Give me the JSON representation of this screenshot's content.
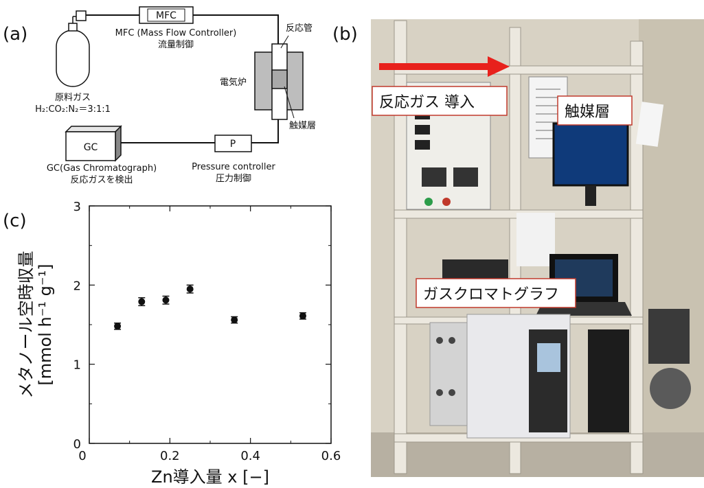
{
  "panels": {
    "a": "(a)",
    "b": "(b)",
    "c": "(c)"
  },
  "schematic": {
    "mfc_box": "MFC",
    "mfc_caption_1": "MFC (Mass Flow Controller)",
    "mfc_caption_2": "流量制御",
    "gas_caption_1": "原料ガス",
    "gas_caption_2": "H₂:CO₂:N₂＝3:1:1",
    "reactor_tube": "反応管",
    "furnace": "電気炉",
    "catalyst_bed": "触媒層",
    "gc_box": "GC",
    "gc_caption_1": "GC(Gas Chromatograph)",
    "gc_caption_2": "反応ガスを検出",
    "p_box": "P",
    "p_caption_1": "Pressure controller",
    "p_caption_2": "圧力制御"
  },
  "photo": {
    "callouts": {
      "gas_in": "反応ガス 導入",
      "catalyst": "触媒層",
      "gc": "ガスクロマトグラフ"
    },
    "colors": {
      "arrow": "#e8211c",
      "callout_border": "#c0392b",
      "frame": "#d9d4c8",
      "wall": "#d8d2c4"
    }
  },
  "chart_data": {
    "type": "scatter",
    "xlabel": "Zn導入量 x [−]",
    "ylabel_1": "メタノール空時収量",
    "ylabel_2": "[mmol h⁻¹ g⁻¹]",
    "xlim": [
      0,
      0.6
    ],
    "ylim": [
      0,
      3
    ],
    "xticks": [
      "0",
      "0.2",
      "0.4",
      "0.6"
    ],
    "yticks": [
      "0",
      "1",
      "2",
      "3"
    ],
    "x": [
      0.07,
      0.13,
      0.19,
      0.25,
      0.36,
      0.53
    ],
    "y": [
      1.48,
      1.79,
      1.81,
      1.95,
      1.56,
      1.61
    ],
    "yerr": [
      0.04,
      0.05,
      0.05,
      0.05,
      0.04,
      0.04
    ],
    "grid": false
  }
}
